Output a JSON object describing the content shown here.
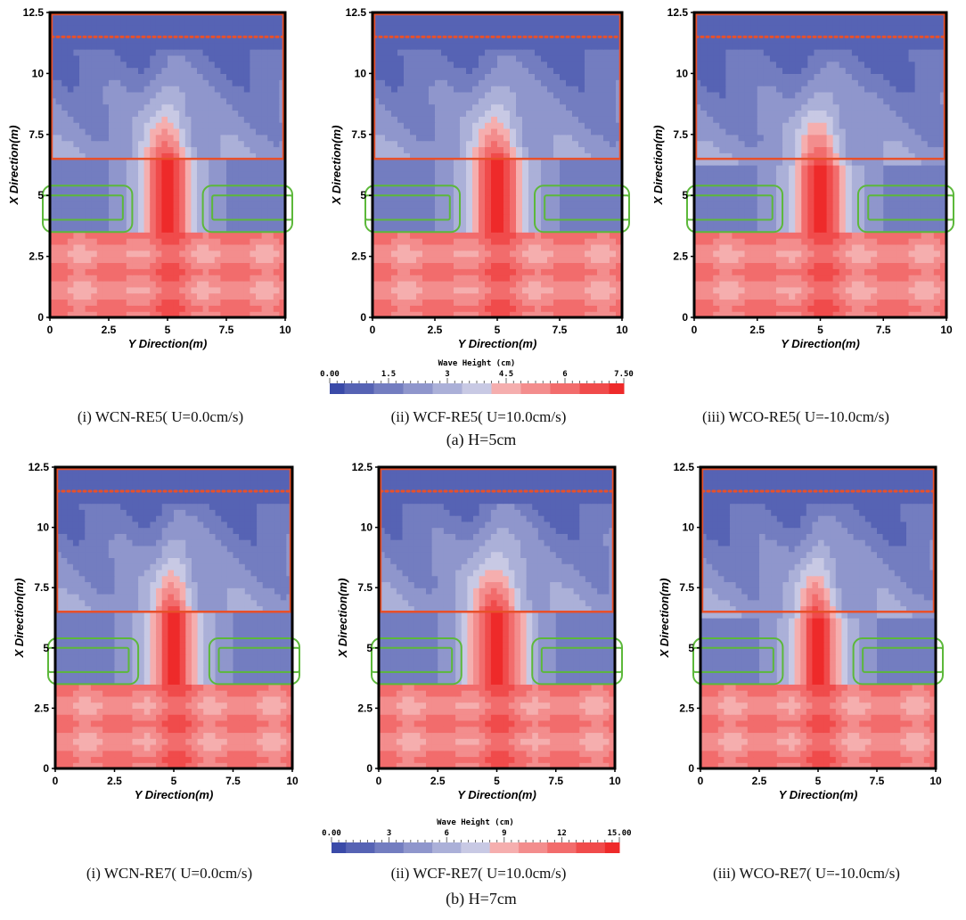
{
  "figure": {
    "row_captions": [
      "(a)  H=5cm",
      "(b)  H=7cm"
    ],
    "axis_titles": {
      "x": "Y Direction(m)",
      "y": "X Direction(m)"
    },
    "colors": {
      "low": "#3a4aa8",
      "mid": "#d6d6ea",
      "high": "#ee2a2a",
      "frame": "#000000",
      "breakwater": "#e8502a",
      "structure": "#5cb83a"
    }
  },
  "chart_data": [
    {
      "type": "heatmap",
      "group": "a",
      "case": "WCN-RE5",
      "caption": "(i)  WCN-RE5( U=0.0cm/s)",
      "xlabel": "Y Direction(m)",
      "ylabel": "X Direction(m)",
      "xlim": [
        0,
        10
      ],
      "ylim": [
        0,
        12.5
      ],
      "xticks": [
        "0",
        "2.5",
        "5",
        "7.5",
        "10"
      ],
      "yticks": [
        "0",
        "2.5",
        "5",
        "7.5",
        "10",
        "12.5"
      ],
      "colorbar_max": 7.5,
      "jet_peak_x": 5.8,
      "jet_width_m": 0.9
    },
    {
      "type": "heatmap",
      "group": "a",
      "case": "WCF-RE5",
      "caption": "(ii)  WCF-RE5( U=10.0cm/s)",
      "xlabel": "Y Direction(m)",
      "ylabel": "X Direction(m)",
      "xlim": [
        0,
        10
      ],
      "ylim": [
        0,
        12.5
      ],
      "xticks": [
        "0",
        "2.5",
        "5",
        "7.5",
        "10"
      ],
      "yticks": [
        "0",
        "2.5",
        "5",
        "7.5",
        "10",
        "12.5"
      ],
      "colorbar_max": 7.5,
      "jet_peak_x": 5.8,
      "jet_width_m": 0.9
    },
    {
      "type": "heatmap",
      "group": "a",
      "case": "WCO-RE5",
      "caption": "(iii)  WCO-RE5( U=-10.0cm/s)",
      "xlabel": "Y Direction(m)",
      "ylabel": "X Direction(m)",
      "xlim": [
        0,
        10
      ],
      "ylim": [
        0,
        12.5
      ],
      "xticks": [
        "0",
        "2.5",
        "5",
        "7.5",
        "10"
      ],
      "yticks": [
        "0",
        "2.5",
        "5",
        "7.5",
        "10",
        "12.5"
      ],
      "colorbar_max": 7.5,
      "jet_peak_x": 5.6,
      "jet_width_m": 0.85
    },
    {
      "type": "heatmap",
      "group": "b",
      "case": "WCN-RE7",
      "caption": "(i)  WCN-RE7( U=0.0cm/s)",
      "xlabel": "Y Direction(m)",
      "ylabel": "X Direction(m)",
      "xlim": [
        0,
        10
      ],
      "ylim": [
        0,
        12.5
      ],
      "xticks": [
        "0",
        "2.5",
        "5",
        "7.5",
        "10"
      ],
      "yticks": [
        "0",
        "2.5",
        "5",
        "7.5",
        "10",
        "12.5"
      ],
      "colorbar_max": 15.0,
      "jet_peak_x": 5.8,
      "jet_width_m": 0.8
    },
    {
      "type": "heatmap",
      "group": "b",
      "case": "WCF-RE7",
      "caption": "(ii)  WCF-RE7( U=10.0cm/s)",
      "xlabel": "Y Direction(m)",
      "ylabel": "X Direction(m)",
      "xlim": [
        0,
        10
      ],
      "ylim": [
        0,
        12.5
      ],
      "xticks": [
        "0",
        "2.5",
        "5",
        "7.5",
        "10"
      ],
      "yticks": [
        "0",
        "2.5",
        "5",
        "7.5",
        "10",
        "12.5"
      ],
      "colorbar_max": 15.0,
      "jet_peak_x": 6.0,
      "jet_width_m": 1.0
    },
    {
      "type": "heatmap",
      "group": "b",
      "case": "WCO-RE7",
      "caption": "(iii)  WCO-RE7( U=-10.0cm/s)",
      "xlabel": "Y Direction(m)",
      "ylabel": "X Direction(m)",
      "xlim": [
        0,
        10
      ],
      "ylim": [
        0,
        12.5
      ],
      "xticks": [
        "0",
        "2.5",
        "5",
        "7.5",
        "10"
      ],
      "yticks": [
        "0",
        "2.5",
        "5",
        "7.5",
        "10",
        "12.5"
      ],
      "colorbar_max": 15.0,
      "jet_peak_x": 5.7,
      "jet_width_m": 0.8
    }
  ],
  "colorbars": [
    {
      "title": "Wave Height (cm)",
      "tick_labels": [
        "0.00",
        "1.5",
        "3",
        "4.5",
        "6",
        "7.50"
      ],
      "min": 0,
      "max": 7.5
    },
    {
      "title": "Wave Height (cm)",
      "tick_labels": [
        "0.00",
        "3",
        "6",
        "9",
        "12",
        "15.00"
      ],
      "min": 0,
      "max": 15
    }
  ],
  "structures": {
    "breakwater_solid_x": 6.5,
    "breakwater_dotted_x": 11.5,
    "submerged_y_ranges": [
      [
        0,
        3.5
      ],
      [
        6.5,
        10
      ]
    ],
    "submerged_x_ranges": [
      [
        3.5,
        5.4
      ],
      [
        4.0,
        5.0
      ]
    ]
  }
}
